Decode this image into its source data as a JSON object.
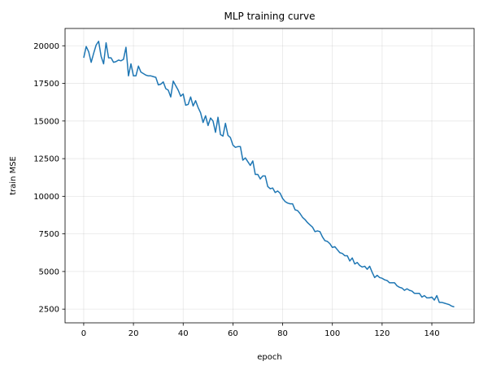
{
  "chart_data": {
    "type": "line",
    "title": "MLP training curve",
    "xlabel": "epoch",
    "ylabel": "train MSE",
    "xlim": [
      -7.5,
      157
    ],
    "ylim": [
      1590,
      21150
    ],
    "xticks": [
      0,
      20,
      40,
      60,
      80,
      100,
      120,
      140
    ],
    "yticks": [
      2500,
      5000,
      7500,
      10000,
      12500,
      15000,
      17500,
      20000
    ],
    "xtick_labels": [
      "0",
      "20",
      "40",
      "60",
      "80",
      "100",
      "120",
      "140"
    ],
    "ytick_labels": [
      "2500",
      "5000",
      "7500",
      "10000",
      "12500",
      "15000",
      "17500",
      "20000"
    ],
    "grid": true,
    "line_color": "#1f77b4",
    "x": [
      0,
      1,
      2,
      3,
      4,
      5,
      6,
      7,
      8,
      9,
      10,
      11,
      12,
      13,
      14,
      15,
      16,
      17,
      18,
      19,
      20,
      21,
      22,
      23,
      24,
      25,
      26,
      27,
      28,
      29,
      30,
      31,
      32,
      33,
      34,
      35,
      36,
      37,
      38,
      39,
      40,
      41,
      42,
      43,
      44,
      45,
      46,
      47,
      48,
      49,
      50,
      51,
      52,
      53,
      54,
      55,
      56,
      57,
      58,
      59,
      60,
      61,
      62,
      63,
      64,
      65,
      66,
      67,
      68,
      69,
      70,
      71,
      72,
      73,
      74,
      75,
      76,
      77,
      78,
      79,
      80,
      81,
      82,
      83,
      84,
      85,
      86,
      87,
      88,
      89,
      90,
      91,
      92,
      93,
      94,
      95,
      96,
      97,
      98,
      99,
      100,
      101,
      102,
      103,
      104,
      105,
      106,
      107,
      108,
      109,
      110,
      111,
      112,
      113,
      114,
      115,
      116,
      117,
      118,
      119,
      120,
      121,
      122,
      123,
      124,
      125,
      126,
      127,
      128,
      129,
      130,
      131,
      132,
      133,
      134,
      135,
      136,
      137,
      138,
      139,
      140,
      141,
      142,
      143,
      144,
      145,
      146,
      147,
      148,
      149
    ],
    "y": [
      19200,
      19950,
      19600,
      18900,
      19500,
      20050,
      20300,
      19300,
      18800,
      20200,
      19200,
      19200,
      18900,
      18950,
      19050,
      19000,
      19100,
      19900,
      18000,
      18800,
      18000,
      18000,
      18650,
      18250,
      18150,
      18050,
      18000,
      18000,
      17950,
      17900,
      17400,
      17450,
      17600,
      17150,
      17050,
      16600,
      17650,
      17350,
      17050,
      16650,
      16800,
      16050,
      16100,
      16600,
      16000,
      16350,
      15900,
      15550,
      14900,
      15350,
      14700,
      15200,
      15000,
      14250,
      15250,
      14100,
      14000,
      14850,
      14050,
      13900,
      13400,
      13250,
      13300,
      13300,
      12400,
      12550,
      12300,
      12050,
      12350,
      11450,
      11450,
      11150,
      11350,
      11350,
      10650,
      10500,
      10550,
      10250,
      10350,
      10200,
      9850,
      9650,
      9550,
      9500,
      9500,
      9100,
      9050,
      8850,
      8600,
      8450,
      8250,
      8100,
      7950,
      7650,
      7700,
      7650,
      7300,
      7050,
      7000,
      6850,
      6600,
      6650,
      6450,
      6250,
      6200,
      6050,
      6050,
      5700,
      5900,
      5500,
      5600,
      5400,
      5300,
      5350,
      5150,
      5350,
      4950,
      4600,
      4750,
      4600,
      4550,
      4450,
      4400,
      4250,
      4250,
      4250,
      4050,
      3950,
      3900,
      3750,
      3850,
      3750,
      3700,
      3550,
      3550,
      3550,
      3300,
      3400,
      3250,
      3250,
      3300,
      3100,
      3400,
      2950,
      2950,
      2900,
      2850,
      2800,
      2700,
      2650
    ]
  }
}
